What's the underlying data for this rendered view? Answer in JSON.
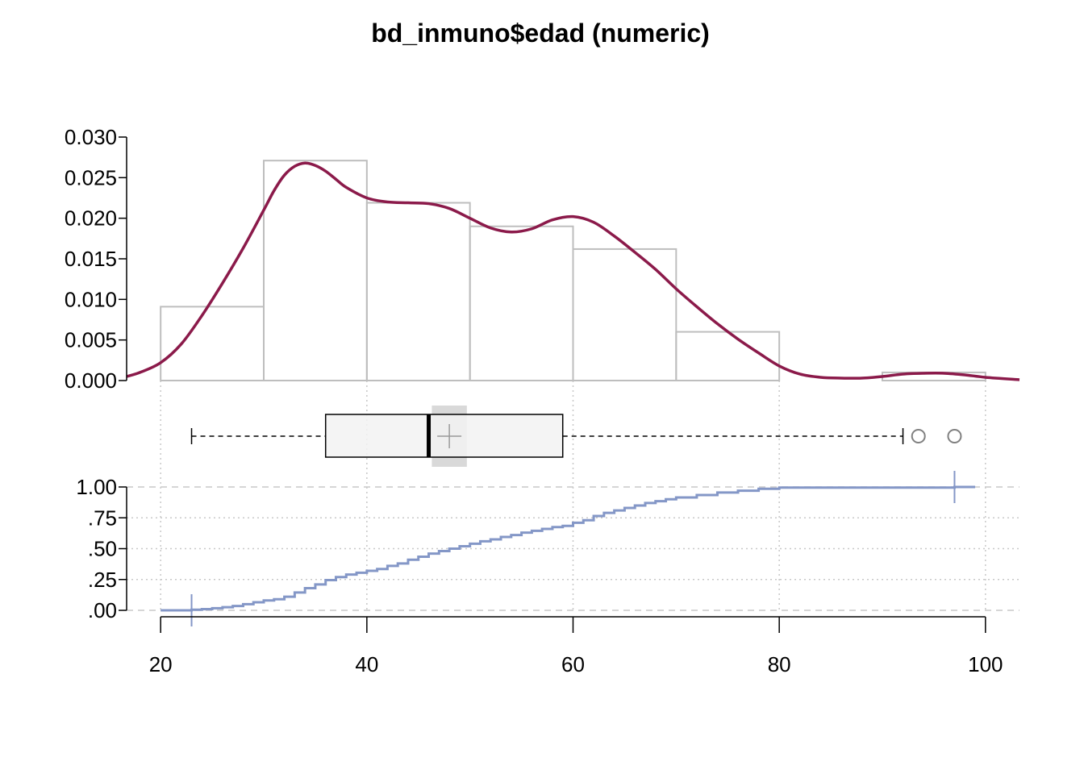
{
  "chart_data": {
    "type": "histogram+density+boxplot+ecdf",
    "title": "bd_inmuno$edad (numeric)",
    "x_ticks": [
      20,
      40,
      60,
      80,
      100
    ],
    "x_tick_labels": [
      "20",
      "40",
      "60",
      "80",
      "100"
    ],
    "xlim": [
      16.7,
      103.3
    ],
    "histogram": {
      "bin_edges": [
        20,
        30,
        40,
        50,
        60,
        70,
        80,
        90,
        100
      ],
      "density": [
        0.0091,
        0.0271,
        0.0219,
        0.019,
        0.0162,
        0.006,
        0.0,
        0.001
      ],
      "y_ticks": [
        0,
        0.005,
        0.01,
        0.015,
        0.02,
        0.025,
        0.03
      ],
      "y_tick_labels": [
        "0.000",
        "0.005",
        "0.010",
        "0.015",
        "0.020",
        "0.025",
        "0.030"
      ],
      "ylim": [
        0,
        0.03
      ],
      "bar_color": "#BEBEBE"
    },
    "density_curve": {
      "color": "#8B1A4A",
      "x": [
        16.7,
        18,
        20,
        22,
        24,
        26,
        28,
        30,
        31,
        32,
        33,
        34,
        35,
        36,
        37,
        38,
        40,
        42,
        44,
        46,
        48,
        50,
        52,
        54,
        56,
        58,
        60,
        62,
        64,
        66,
        68,
        70,
        72,
        74,
        76,
        78,
        80,
        82,
        84,
        86,
        88,
        90,
        92,
        94,
        96,
        98,
        100,
        103.3
      ],
      "y": [
        0.0005,
        0.001,
        0.0022,
        0.0045,
        0.008,
        0.012,
        0.0163,
        0.021,
        0.0234,
        0.0253,
        0.0264,
        0.0268,
        0.0265,
        0.0258,
        0.0248,
        0.0238,
        0.0225,
        0.022,
        0.0219,
        0.0218,
        0.0212,
        0.02,
        0.0188,
        0.0183,
        0.0187,
        0.0198,
        0.0202,
        0.0195,
        0.0178,
        0.0158,
        0.0137,
        0.0113,
        0.0091,
        0.007,
        0.0051,
        0.0034,
        0.0018,
        0.0008,
        0.0004,
        0.0003,
        0.0003,
        0.0005,
        0.0008,
        0.0009,
        0.0009,
        0.0007,
        0.0004,
        0.0001
      ]
    },
    "boxplot": {
      "whisker_low": 23,
      "q1": 36,
      "median": 46,
      "q3": 59,
      "whisker_high": 92,
      "mean": 48,
      "mean_ci": [
        46.3,
        49.7
      ],
      "outliers": [
        93.5,
        97
      ]
    },
    "ecdf": {
      "color": "#8497C7",
      "y_ticks": [
        0,
        0.25,
        0.5,
        0.75,
        1.0
      ],
      "y_tick_labels": [
        ".00",
        ".25",
        ".50",
        ".75",
        "1.00"
      ],
      "ylim": [
        0,
        1
      ],
      "x": [
        20,
        23,
        24,
        25,
        26,
        27,
        28,
        29,
        30,
        31,
        32,
        33,
        34,
        35,
        36,
        37,
        38,
        39,
        40,
        41,
        42,
        43,
        44,
        45,
        46,
        47,
        48,
        49,
        50,
        51,
        52,
        53,
        54,
        55,
        56,
        57,
        58,
        59,
        60,
        61,
        62,
        63,
        64,
        65,
        66,
        67,
        68,
        69,
        70,
        72,
        74,
        76,
        78,
        80,
        97,
        99
      ],
      "y": [
        0.0,
        0.005,
        0.01,
        0.017,
        0.025,
        0.035,
        0.05,
        0.065,
        0.08,
        0.09,
        0.11,
        0.145,
        0.18,
        0.21,
        0.245,
        0.27,
        0.29,
        0.305,
        0.32,
        0.335,
        0.36,
        0.38,
        0.41,
        0.435,
        0.46,
        0.48,
        0.5,
        0.52,
        0.54,
        0.56,
        0.575,
        0.595,
        0.61,
        0.63,
        0.645,
        0.66,
        0.675,
        0.685,
        0.71,
        0.73,
        0.765,
        0.79,
        0.81,
        0.83,
        0.85,
        0.87,
        0.885,
        0.9,
        0.915,
        0.935,
        0.955,
        0.97,
        0.985,
        0.995,
        1.0,
        1.0
      ],
      "markers_x": [
        23,
        97
      ]
    }
  }
}
